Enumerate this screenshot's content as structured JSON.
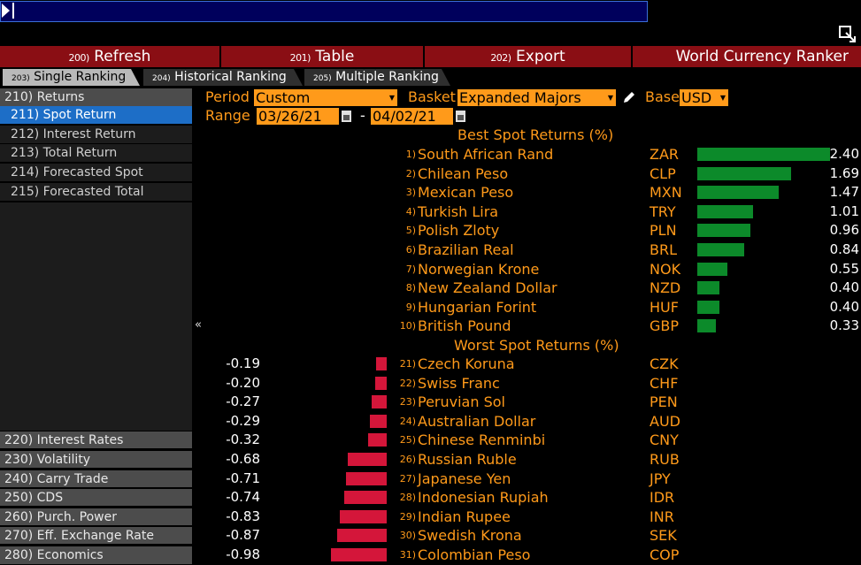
{
  "toolbar": {
    "refresh": {
      "num": "200)",
      "label": "Refresh"
    },
    "table": {
      "num": "201)",
      "label": "Table"
    },
    "export": {
      "num": "202)",
      "label": "Export"
    },
    "title": "World Currency Ranker"
  },
  "tabs": [
    {
      "num": "203)",
      "label": "Single Ranking"
    },
    {
      "num": "204)",
      "label": "Historical Ranking"
    },
    {
      "num": "205)",
      "label": "Multiple Ranking"
    }
  ],
  "sidebar": {
    "returns_header": "210) Returns",
    "returns_items": [
      "211) Spot Return",
      "212) Interest Return",
      "213) Total Return",
      "214) Forecasted Spot",
      "215) Forecasted Total"
    ],
    "bottom_items": [
      "220) Interest Rates",
      "230) Volatility",
      "240) Carry Trade",
      "250) CDS",
      "260) Purch. Power",
      "270) Eff. Exchange Rate",
      "280) Economics"
    ]
  },
  "controls": {
    "period_label": "Period",
    "period_value": "Custom",
    "basket_label": "Basket",
    "basket_value": "Expanded Majors",
    "base_label": "Base",
    "base_value": "USD",
    "range_label": "Range",
    "range_start": "03/26/21",
    "range_sep": "-",
    "range_end": "04/02/21"
  },
  "best": {
    "title": "Best Spot Returns (%)",
    "rows": [
      {
        "rank": "1)",
        "name": "South African Rand",
        "code": "ZAR",
        "value": "2.40"
      },
      {
        "rank": "2)",
        "name": "Chilean Peso",
        "code": "CLP",
        "value": "1.69"
      },
      {
        "rank": "3)",
        "name": "Mexican Peso",
        "code": "MXN",
        "value": "1.47"
      },
      {
        "rank": "4)",
        "name": "Turkish Lira",
        "code": "TRY",
        "value": "1.01"
      },
      {
        "rank": "5)",
        "name": "Polish Zloty",
        "code": "PLN",
        "value": "0.96"
      },
      {
        "rank": "6)",
        "name": "Brazilian Real",
        "code": "BRL",
        "value": "0.84"
      },
      {
        "rank": "7)",
        "name": "Norwegian Krone",
        "code": "NOK",
        "value": "0.55"
      },
      {
        "rank": "8)",
        "name": "New Zealand Dollar",
        "code": "NZD",
        "value": "0.40"
      },
      {
        "rank": "9)",
        "name": "Hungarian Forint",
        "code": "HUF",
        "value": "0.40"
      },
      {
        "rank": "10)",
        "name": "British Pound",
        "code": "GBP",
        "value": "0.33"
      }
    ]
  },
  "worst": {
    "title": "Worst Spot Returns (%)",
    "rows": [
      {
        "rank": "21)",
        "name": "Czech Koruna",
        "code": "CZK",
        "value": "-0.19"
      },
      {
        "rank": "22)",
        "name": "Swiss Franc",
        "code": "CHF",
        "value": "-0.20"
      },
      {
        "rank": "23)",
        "name": "Peruvian Sol",
        "code": "PEN",
        "value": "-0.27"
      },
      {
        "rank": "24)",
        "name": "Australian Dollar",
        "code": "AUD",
        "value": "-0.29"
      },
      {
        "rank": "25)",
        "name": "Chinese Renminbi",
        "code": "CNY",
        "value": "-0.32"
      },
      {
        "rank": "26)",
        "name": "Russian Ruble",
        "code": "RUB",
        "value": "-0.68"
      },
      {
        "rank": "27)",
        "name": "Japanese Yen",
        "code": "JPY",
        "value": "-0.71"
      },
      {
        "rank": "28)",
        "name": "Indonesian Rupiah",
        "code": "IDR",
        "value": "-0.74"
      },
      {
        "rank": "29)",
        "name": "Indian Rupee",
        "code": "INR",
        "value": "-0.83"
      },
      {
        "rank": "30)",
        "name": "Swedish Krona",
        "code": "SEK",
        "value": "-0.87"
      },
      {
        "rank": "31)",
        "name": "Colombian Peso",
        "code": "COP",
        "value": "-0.98"
      }
    ]
  },
  "icons": {
    "collapse": "«",
    "dropdown": "▼"
  },
  "colors": {
    "accent": "#ff9a1a",
    "function_bar": "#8a0e14",
    "selected": "#1d6ec7",
    "positive_bar": "#0c8a2a",
    "negative_bar": "#d4163a"
  }
}
